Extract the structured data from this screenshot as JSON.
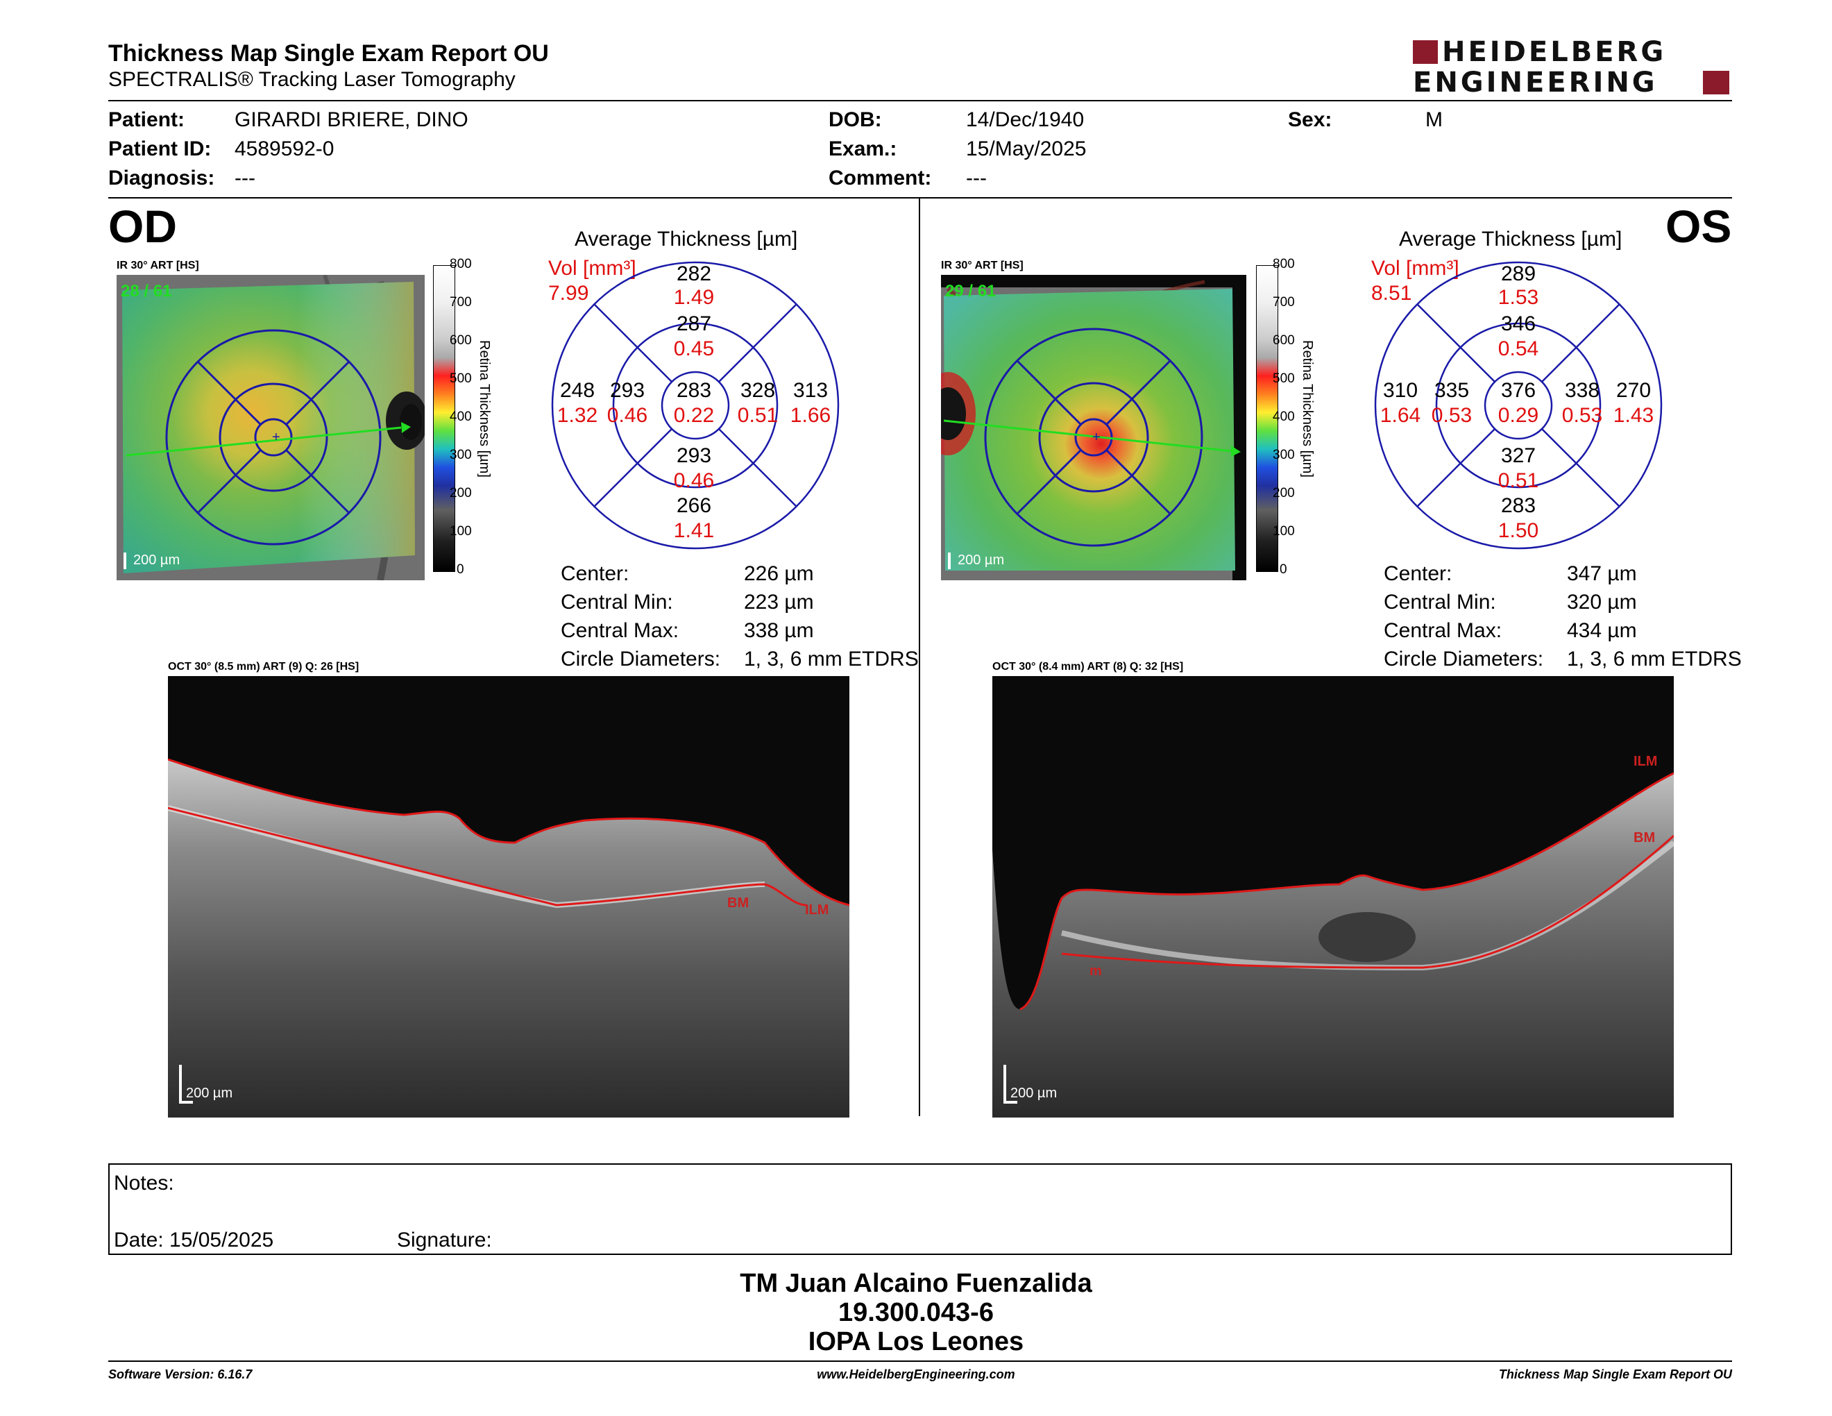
{
  "header": {
    "title": "Thickness Map Single Exam Report OU",
    "subtitle": "SPECTRALIS® Tracking Laser Tomography",
    "logo_line1": "HEIDELBERG",
    "logo_line2": "ENGINEERING"
  },
  "patient": {
    "patient_label": "Patient:",
    "patient_value": "GIRARDI BRIERE, DINO",
    "id_label": "Patient ID:",
    "id_value": "4589592-0",
    "diagnosis_label": "Diagnosis:",
    "diagnosis_value": "---",
    "dob_label": "DOB:",
    "dob_value": "14/Dec/1940",
    "exam_label": "Exam.:",
    "exam_value": "15/May/2025",
    "comment_label": "Comment:",
    "comment_value": "---",
    "sex_label": "Sex:",
    "sex_value": "M"
  },
  "od": {
    "eye_label": "OD",
    "ir_label": "IR 30° ART [HS]",
    "frame_count": "28 / 61",
    "scale_bar": "200 µm",
    "avg_title": "Average Thickness [µm]",
    "vol_label": "Vol [mm³]",
    "vol_value": "7.99",
    "grid": {
      "center": {
        "t": "283",
        "v": "0.22"
      },
      "inner_top": {
        "t": "287",
        "v": "0.45"
      },
      "inner_bottom": {
        "t": "293",
        "v": "0.46"
      },
      "inner_left": {
        "t": "293",
        "v": "0.46"
      },
      "inner_right": {
        "t": "328",
        "v": "0.51"
      },
      "outer_top": {
        "t": "282",
        "v": "1.49"
      },
      "outer_bottom": {
        "t": "266",
        "v": "1.41"
      },
      "outer_left": {
        "t": "248",
        "v": "1.32"
      },
      "outer_right": {
        "t": "313",
        "v": "1.66"
      }
    },
    "stats": {
      "center_label": "Center:",
      "center_value": "226 µm",
      "min_label": "Central Min:",
      "min_value": "223 µm",
      "max_label": "Central Max:",
      "max_value": "338 µm",
      "circ_label": "Circle Diameters:",
      "circ_value": "1, 3, 6 mm ETDRS"
    },
    "oct_label": "OCT 30° (8.5 mm) ART (9) Q: 26 [HS]",
    "oct_scale": "200 µm",
    "layer_bm": "BM",
    "layer_ilm": "ILM"
  },
  "os": {
    "eye_label": "OS",
    "ir_label": "IR 30° ART [HS]",
    "frame_count": "29 / 61",
    "scale_bar": "200 µm",
    "avg_title": "Average Thickness [µm]",
    "vol_label": "Vol [mm³]",
    "vol_value": "8.51",
    "grid": {
      "center": {
        "t": "376",
        "v": "0.29"
      },
      "inner_top": {
        "t": "346",
        "v": "0.54"
      },
      "inner_bottom": {
        "t": "327",
        "v": "0.51"
      },
      "inner_left": {
        "t": "335",
        "v": "0.53"
      },
      "inner_right": {
        "t": "338",
        "v": "0.53"
      },
      "outer_top": {
        "t": "289",
        "v": "1.53"
      },
      "outer_bottom": {
        "t": "283",
        "v": "1.50"
      },
      "outer_left": {
        "t": "310",
        "v": "1.64"
      },
      "outer_right": {
        "t": "270",
        "v": "1.43"
      }
    },
    "stats": {
      "center_label": "Center:",
      "center_value": "347 µm",
      "min_label": "Central Min:",
      "min_value": "320 µm",
      "max_label": "Central Max:",
      "max_value": "434 µm",
      "circ_label": "Circle Diameters:",
      "circ_value": "1, 3, 6 mm ETDRS"
    },
    "oct_label": "OCT 30° (8.4 mm) ART (8) Q: 32 [HS]",
    "oct_scale": "200 µm",
    "layer_ilm": "ILM",
    "layer_bm": "BM",
    "layer_m": "m"
  },
  "legend": {
    "title": "Retina Thickness [µm]",
    "ticks": [
      "800",
      "700",
      "600",
      "500",
      "400",
      "300",
      "200",
      "100",
      "0"
    ]
  },
  "notes": {
    "notes_label": "Notes:",
    "date_label": "Date: 15/05/2025",
    "signature_label": "Signature:"
  },
  "signatory": {
    "name": "TM Juan Alcaino Fuenzalida",
    "id": "19.300.043-6",
    "org": "IOPA Los Leones"
  },
  "footer": {
    "software": "Software Version: 6.16.7",
    "website": "www.HeidelbergEngineering.com",
    "report_name": "Thickness Map Single Exam Report OU"
  },
  "colors": {
    "grid_blue": "#1a1aa8",
    "volume_red": "#e01010",
    "logo_red": "#8b1a2b",
    "green_frame": "#22dd22"
  }
}
